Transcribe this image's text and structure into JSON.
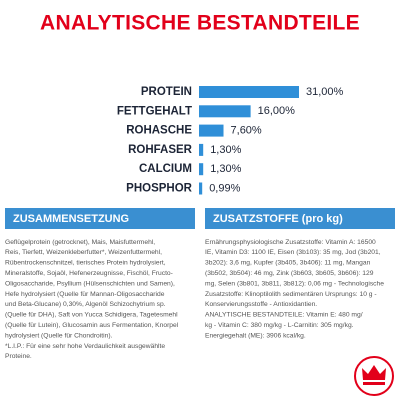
{
  "chart_data": {
    "type": "bar",
    "title": "ANALYTISCHE BESTANDTEILE",
    "categories": [
      "PROTEIN",
      "FETTGEHALT",
      "ROHASCHE",
      "ROHFASER",
      "CALCIUM",
      "PHOSPHOR"
    ],
    "values": [
      31.0,
      16.0,
      7.6,
      1.3,
      1.3,
      0.99
    ],
    "value_labels": [
      "31,00%",
      "16,00%",
      "7,60%",
      "1,30%",
      "1,30%",
      "0,99%"
    ],
    "color": "#2f8fd8"
  },
  "sections": [
    {
      "title": "ZUSAMMENSETZUNG",
      "lines": [
        "Geflügelprotein (getrocknet), Mais, Maisfuttermehl,",
        "Reis, Tierfett, Weizenkleberfutter*, Weizenfuttermehl,",
        "Rübentrockenschnitzel, tierisches Protein hydrolysiert,",
        "Mineralstoffe, Sojaöl, Hefenerzeugnisse, Fischöl, Fructo-",
        "Oligosaccharide, Psyllium (Hülsenschichten und Samen),",
        "Hefe hydrolysiert (Quelle für Mannan-Oligosaccharide",
        "und Beta-Glucane) 0,30%, Algenöl Schizochytrium sp.",
        "(Quelle für DHA), Saft von Yucca Schidigera, Tagetesmehl",
        "(Quelle für Lutein), Glucosamin aus Fermentation, Knorpel",
        "hydrolysiert (Quelle für Chondroitin).",
        "*L.I.P.: Für eine sehr hohe Verdaulichkeit ausgewählte",
        "Proteine."
      ]
    },
    {
      "title": "ZUSATZSTOFFE (pro kg)",
      "lines": [
        "Ernährungsphysiologische Zusatzstoffe: Vitamin A: 16500",
        "IE, Vitamin D3: 1100 IE, Eisen (3b103): 35 mg, Jod (3b201,",
        "3b202): 3,6 mg, Kupfer (3b405, 3b406): 11 mg, Mangan",
        "(3b502, 3b504): 46 mg, Zink (3b603, 3b605, 3b606): 129",
        "mg, Selen (3b801, 3b811, 3b812): 0,06 mg - Technologische",
        "Zusatzstoffe: Klinoptilolith sedimentären Ursprungs: 10 g -",
        "Konservierungsstoffe - Antioxidantien.",
        "ANALYTISCHE BESTANDTEILE: Vitamin E: 480 mg/",
        "kg - Vitamin C: 380 mg/kg - L-Carnitin: 305 mg/kg.",
        "Energiegehalt (ME): 3906 kcal/kg."
      ]
    }
  ]
}
